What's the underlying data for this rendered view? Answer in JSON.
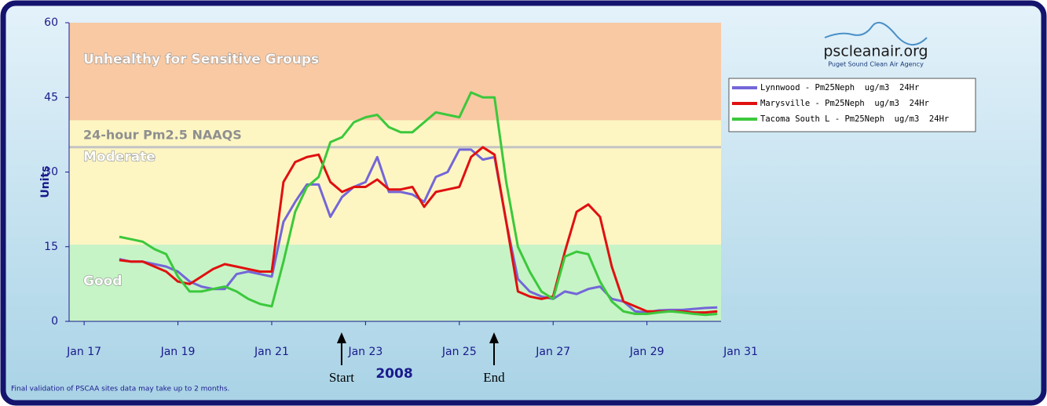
{
  "logo": {
    "title": "pscleanair.org",
    "subtitle": "Puget Sound Clean Air Agency"
  },
  "chart_data": {
    "type": "line",
    "ylabel": "Units",
    "xlabel": "2008",
    "note": "Final validation of PSCAA sites data may take up to 2 months.",
    "xlim": [
      16.68,
      30.58
    ],
    "ylim": [
      0,
      60
    ],
    "xticks": [
      {
        "value": 17,
        "label": "Jan 17"
      },
      {
        "value": 19,
        "label": "Jan 19"
      },
      {
        "value": 21,
        "label": "Jan 21"
      },
      {
        "value": 23,
        "label": "Jan 23"
      },
      {
        "value": 25,
        "label": "Jan 25"
      },
      {
        "value": 27,
        "label": "Jan 27"
      },
      {
        "value": 29,
        "label": "Jan 29"
      },
      {
        "value": 31,
        "label": "Jan 31"
      }
    ],
    "yticks": [
      0,
      15,
      30,
      45,
      60
    ],
    "bands": [
      {
        "label": "Good",
        "from": 0,
        "to": 15.4,
        "color": "#c6f4c6"
      },
      {
        "label": "Moderate",
        "from": 15.4,
        "to": 40.4,
        "color": "#fdf6c3"
      },
      {
        "label": "Unhealthy for Sensitive Groups",
        "from": 40.4,
        "to": 60,
        "color": "#f8c9a3"
      }
    ],
    "reference_line": {
      "label": "24-hour Pm2.5 NAAQS",
      "value": 35,
      "color": "#c4c4c4"
    },
    "annotations": [
      {
        "label": "Start",
        "x": 22.49
      },
      {
        "label": "End",
        "x": 25.74
      }
    ],
    "x": [
      17.75,
      18,
      18.25,
      18.5,
      18.75,
      19,
      19.25,
      19.5,
      19.75,
      20,
      20.25,
      20.5,
      20.75,
      21,
      21.25,
      21.5,
      21.75,
      22,
      22.25,
      22.5,
      22.75,
      23,
      23.25,
      23.5,
      23.75,
      24,
      24.25,
      24.5,
      24.75,
      25,
      25.25,
      25.5,
      25.75,
      26,
      26.25,
      26.5,
      26.75,
      27,
      27.25,
      27.5,
      27.75,
      28,
      28.25,
      28.5,
      28.75,
      29,
      29.25,
      29.5,
      29.75,
      30,
      30.25,
      30.5
    ],
    "series": [
      {
        "name": "Lynnwood - Pm25Neph  ug/m3  24Hr",
        "color": "#7466d8",
        "values": [
          12.5,
          12,
          12,
          11.5,
          11,
          10,
          8,
          7,
          6.5,
          6.5,
          9.5,
          10,
          9.5,
          9,
          20,
          24,
          27.5,
          27.5,
          21,
          25,
          27,
          28,
          33,
          26,
          26,
          25.5,
          24,
          29,
          30,
          34.5,
          34.5,
          32.5,
          33,
          20,
          8.5,
          6,
          5,
          4.5,
          6,
          5.5,
          6.5,
          7,
          4.5,
          4,
          2,
          1.8,
          2.2,
          2.3,
          2.3,
          2.5,
          2.7,
          2.8
        ]
      },
      {
        "name": "Marysville - Pm25Neph  ug/m3  24Hr",
        "color": "#e01010",
        "values": [
          12.3,
          12,
          12,
          11,
          10,
          8,
          7.5,
          9,
          10.5,
          11.5,
          11,
          10.5,
          10,
          10,
          28,
          32,
          33,
          33.5,
          28,
          26,
          27,
          27,
          28.5,
          26.5,
          26.5,
          27,
          23,
          26,
          26.5,
          27,
          33,
          35,
          33.5,
          20,
          6,
          5,
          4.5,
          5,
          14,
          22,
          23.5,
          21,
          11,
          4,
          3,
          2,
          2,
          2,
          2,
          1.8,
          1.8,
          2
        ]
      },
      {
        "name": "Tacoma South L - Pm25Neph  ug/m3  24Hr",
        "color": "#3cc83c",
        "values": [
          17,
          16.5,
          16,
          14.5,
          13.5,
          9,
          6,
          6,
          6.5,
          7,
          6,
          4.5,
          3.5,
          3,
          12,
          22,
          27,
          29,
          36,
          37,
          40,
          41,
          41.5,
          39,
          38,
          38,
          40,
          42,
          41.5,
          41,
          46,
          45,
          45,
          28,
          15,
          10,
          6,
          4.5,
          13,
          14,
          13.5,
          8,
          4,
          2,
          1.5,
          1.5,
          1.8,
          2,
          1.8,
          1.5,
          1.3,
          1.5
        ]
      }
    ]
  }
}
